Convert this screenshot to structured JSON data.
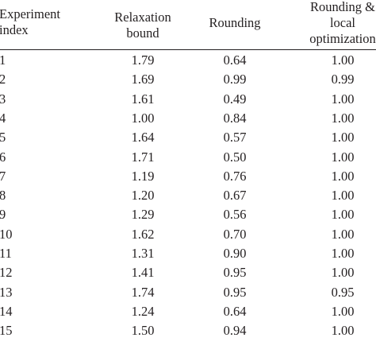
{
  "table": {
    "headers": [
      [
        "Experiment",
        "index"
      ],
      [
        "Relaxation",
        "bound"
      ],
      [
        "Rounding"
      ],
      [
        "Rounding &",
        "local",
        "optimization"
      ]
    ],
    "rows": [
      [
        "1",
        "1.79",
        "0.64",
        "1.00"
      ],
      [
        "2",
        "1.69",
        "0.99",
        "0.99"
      ],
      [
        "3",
        "1.61",
        "0.49",
        "1.00"
      ],
      [
        "4",
        "1.00",
        "0.84",
        "1.00"
      ],
      [
        "5",
        "1.64",
        "0.57",
        "1.00"
      ],
      [
        "6",
        "1.71",
        "0.50",
        "1.00"
      ],
      [
        "7",
        "1.19",
        "0.76",
        "1.00"
      ],
      [
        "8",
        "1.20",
        "0.67",
        "1.00"
      ],
      [
        "9",
        "1.29",
        "0.56",
        "1.00"
      ],
      [
        "10",
        "1.62",
        "0.70",
        "1.00"
      ],
      [
        "11",
        "1.31",
        "0.90",
        "1.00"
      ],
      [
        "12",
        "1.41",
        "0.95",
        "1.00"
      ],
      [
        "13",
        "1.74",
        "0.95",
        "0.95"
      ],
      [
        "14",
        "1.24",
        "0.64",
        "1.00"
      ],
      [
        "15",
        "1.50",
        "0.94",
        "1.00"
      ]
    ]
  }
}
